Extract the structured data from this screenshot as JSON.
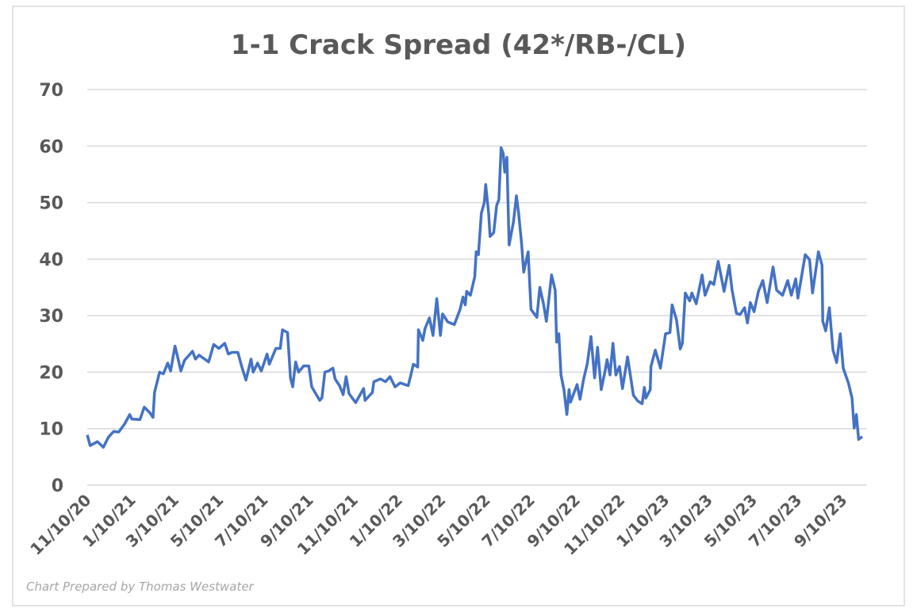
{
  "chart_data": {
    "type": "line",
    "title": "1-1 Crack Spread (42*/RB-/CL)",
    "credit": "Chart Prepared by Thomas Westwater",
    "xlabel": "",
    "ylabel": "",
    "ylim": [
      0,
      70
    ],
    "yticks": [
      "0",
      "10",
      "20",
      "30",
      "40",
      "50",
      "60",
      "70"
    ],
    "xticks": [
      "11/10/20",
      "1/10/21",
      "3/10/21",
      "5/10/21",
      "7/10/21",
      "9/10/21",
      "11/10/21",
      "1/10/22",
      "3/10/22",
      "5/10/22",
      "7/10/22",
      "9/10/22",
      "11/10/22",
      "1/10/23",
      "3/10/23",
      "5/10/23",
      "7/10/23",
      "9/10/23"
    ],
    "grid": true,
    "legend": "none",
    "colors": {
      "line": "#4472c4",
      "grid": "#d9d9d9",
      "text": "#595959",
      "border": "#d9d9d9"
    },
    "series": [
      {
        "x": [
          "11/10/20",
          "11/14/20",
          "11/24/20",
          "12/2/20",
          "12/9/20",
          "12/16/20",
          "12/23/20",
          "12/31/20",
          "1/7/21",
          "1/10/21",
          "1/21/21",
          "1/27/21",
          "2/3/21",
          "2/8/21",
          "2/10/21",
          "2/17/21",
          "2/22/21",
          "2/28/21",
          "3/4/21",
          "3/10/21",
          "3/13/21",
          "3/18/21",
          "3/23/21",
          "4/3/21",
          "4/7/21",
          "4/12/21",
          "4/25/21",
          "5/2/21",
          "5/9/21",
          "5/17/21",
          "5/22/21",
          "5/27/21",
          "6/4/21",
          "6/9/21",
          "6/15/21",
          "6/22/21",
          "6/25/21",
          "7/1/21",
          "7/6/21",
          "7/14/21",
          "7/17/21",
          "7/26/21",
          "8/1/21",
          "8/4/21",
          "8/11/21",
          "8/15/21",
          "8/18/21",
          "8/22/21",
          "8/26/21",
          "9/2/21",
          "9/9/21",
          "9/13/21",
          "9/24/21",
          "9/27/21",
          "10/1/21",
          "10/6/21",
          "10/12/21",
          "10/15/21",
          "10/21/21",
          "10/26/21",
          "10/30/21",
          "11/3/21",
          "11/12/21",
          "11/23/21",
          "11/25/21",
          "12/5/21",
          "12/7/21",
          "12/16/21",
          "12/23/21",
          "12/29/21",
          "1/5/22",
          "1/12/22",
          "1/23/22",
          "1/27/22",
          "1/30/22",
          "2/5/22",
          "2/6/22",
          "2/12/22",
          "2/15/22",
          "2/21/22",
          "2/26/22",
          "3/3/22",
          "3/8/22",
          "3/11/22",
          "3/18/22",
          "3/27/22",
          "4/4/22",
          "4/8/22",
          "4/11/22",
          "4/13/22",
          "4/18/22",
          "4/24/22",
          "4/26/22",
          "4/29/22",
          "5/3/22",
          "5/7/22",
          "5/9/22",
          "5/13/22",
          "5/15/22",
          "5/20/22",
          "5/24/22",
          "5/27/22",
          "5/30/22",
          "6/2/22",
          "6/4/22",
          "6/7/22",
          "6/10/22",
          "6/16/22",
          "6/20/22",
          "6/23/22",
          "6/27/22",
          "6/30/22",
          "7/6/22",
          "7/10/22",
          "7/15/22",
          "7/18/22",
          "7/22/22",
          "7/27/22",
          "7/31/22",
          "8/7/22",
          "8/12/22",
          "8/14/22",
          "8/17/22",
          "8/20/22",
          "8/24/22",
          "8/28/22",
          "8/31/22",
          "9/2/22",
          "9/11/22",
          "9/15/22",
          "9/20/22",
          "9/25/22",
          "9/30/22",
          "10/5/22",
          "10/9/22",
          "10/14/22",
          "10/19/22",
          "10/22/22",
          "10/26/22",
          "10/30/22",
          "11/3/22",
          "11/8/22",
          "11/12/22",
          "11/19/22",
          "11/24/22",
          "11/27/22",
          "12/3/22",
          "12/9/22",
          "12/12/22",
          "12/14/22",
          "12/20/22",
          "12/21/22",
          "12/27/22",
          "1/3/23",
          "1/10/23",
          "1/16/23",
          "1/19/23",
          "1/25/23",
          "1/30/23",
          "2/2/23",
          "2/6/23",
          "2/12/23",
          "2/15/23",
          "2/21/23",
          "3/1/23",
          "3/5/23",
          "3/12/23",
          "3/17/23",
          "3/23/23",
          "3/31/23",
          "4/7/23",
          "4/11/23",
          "4/17/23",
          "4/22/23",
          "4/28/23",
          "5/2/23",
          "5/6/23",
          "5/11/23",
          "5/17/23",
          "5/23/23",
          "5/29/23",
          "6/6/23",
          "6/11/23",
          "6/19/23",
          "6/26/23",
          "7/1/23",
          "7/7/23",
          "7/10/23",
          "7/20/23",
          "7/26/23",
          "7/30/23",
          "8/7/23",
          "8/12/23",
          "8/13/23",
          "8/17/23",
          "8/22/23",
          "8/27/23",
          "9/1/23",
          "9/6/23",
          "9/10/23",
          "9/17/23",
          "9/22/23",
          "9/25/23",
          "9/28/23",
          "10/1/23",
          "10/6/23"
        ],
        "values": [
          8.9,
          7.0,
          7.7,
          6.7,
          8.5,
          9.5,
          9.4,
          10.8,
          12.5,
          11.7,
          11.6,
          13.8,
          12.9,
          12.0,
          16.4,
          20.0,
          19.7,
          21.6,
          20.2,
          24.6,
          23.0,
          20.2,
          22.1,
          23.7,
          22.3,
          23.0,
          21.8,
          24.9,
          24.2,
          25.1,
          23.2,
          23.5,
          23.5,
          21.1,
          18.6,
          22.3,
          20.0,
          21.6,
          20.2,
          23.2,
          21.4,
          24.2,
          24.2,
          27.5,
          27.0,
          19.0,
          17.4,
          21.8,
          20.0,
          21.1,
          21.1,
          17.4,
          15.0,
          15.5,
          20.0,
          20.2,
          20.7,
          18.8,
          17.6,
          16.0,
          19.2,
          16.2,
          14.6,
          17.1,
          15.0,
          16.4,
          18.3,
          18.8,
          18.3,
          19.2,
          17.4,
          18.1,
          17.6,
          19.7,
          21.4,
          20.9,
          27.5,
          25.6,
          27.7,
          29.6,
          26.5,
          33.0,
          26.5,
          30.3,
          28.9,
          28.4,
          31.1,
          33.3,
          31.9,
          34.3,
          33.6,
          36.9,
          41.3,
          40.8,
          48.1,
          50.0,
          53.2,
          48.1,
          44.0,
          44.7,
          49.5,
          50.5,
          59.7,
          58.7,
          55.4,
          58.0,
          42.5,
          46.6,
          51.2,
          48.1,
          42.8,
          37.7,
          41.3,
          31.1,
          30.2,
          29.7,
          35.0,
          32.1,
          29.0,
          37.2,
          34.5,
          25.3,
          26.8,
          19.5,
          16.9,
          12.5,
          16.9,
          14.7,
          17.8,
          15.2,
          18.8,
          21.5,
          26.3,
          19.0,
          24.4,
          16.9,
          20.0,
          22.2,
          19.5,
          25.1,
          19.5,
          21.0,
          17.1,
          22.7,
          18.5,
          15.9,
          14.9,
          14.4,
          17.3,
          15.4,
          16.9,
          21.0,
          23.9,
          20.7,
          26.8,
          27.0,
          31.9,
          29.2,
          24.1,
          25.1,
          34.0,
          32.6,
          34.0,
          32.1,
          37.2,
          33.6,
          36.0,
          35.5,
          39.6,
          34.3,
          38.9,
          34.5,
          30.4,
          30.2,
          31.4,
          28.7,
          32.3,
          30.7,
          34.3,
          36.2,
          32.3,
          38.6,
          34.5,
          33.6,
          36.2,
          33.6,
          36.5,
          33.1,
          40.8,
          39.9,
          34.0,
          41.3,
          38.9,
          29.0,
          27.3,
          31.4,
          23.9,
          21.7,
          26.8,
          20.7,
          18.1,
          15.4,
          10.1,
          12.5,
          8.1,
          8.6
        ]
      }
    ]
  }
}
